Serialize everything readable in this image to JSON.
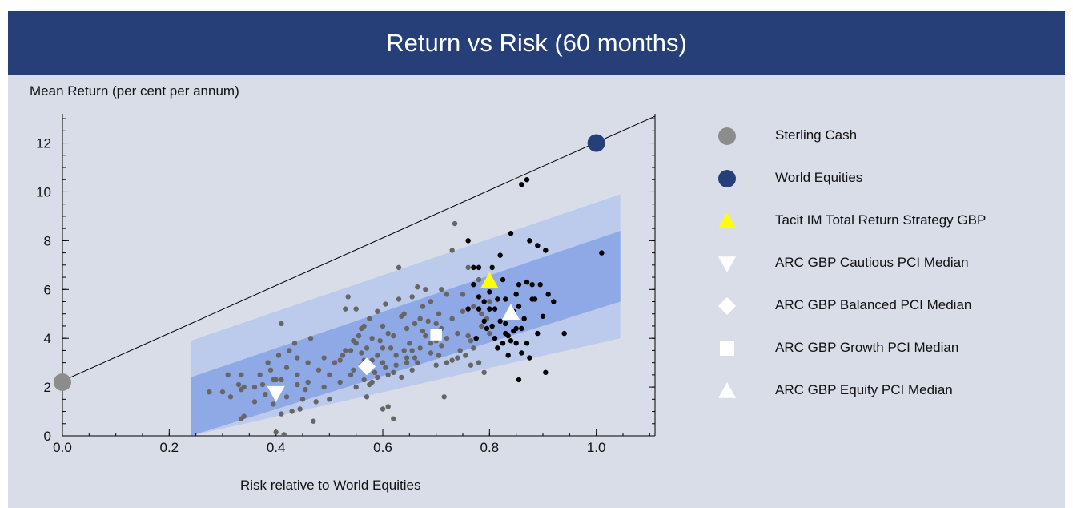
{
  "title": "Return vs Risk (60 months)",
  "chart_data": {
    "type": "scatter",
    "title": "Return vs Risk (60 months)",
    "xlabel": "Risk relative to World Equities",
    "ylabel": "Mean Return (per cent per annum)",
    "xlim": [
      0,
      1.11
    ],
    "ylim": [
      0,
      13.2
    ],
    "xticks": [
      "0.0",
      "0.2",
      "0.4",
      "0.6",
      "0.8",
      "1.0"
    ],
    "yticks": [
      "0",
      "2",
      "4",
      "6",
      "8",
      "10",
      "12"
    ],
    "line": {
      "x": [
        0,
        1.11
      ],
      "y": [
        2.25,
        13.1
      ]
    },
    "bands": {
      "outer": {
        "x": [
          0.24,
          1.045
        ],
        "upper": [
          3.9,
          9.9
        ],
        "lower": [
          0,
          4.0
        ]
      },
      "inner": {
        "x": [
          0.24,
          1.045
        ],
        "upper": [
          2.4,
          8.4
        ],
        "lower": [
          0,
          5.5
        ]
      }
    },
    "legend": [
      {
        "label": "Sterling Cash",
        "marker": "circle",
        "color": "#8c8c8c"
      },
      {
        "label": "World Equities",
        "marker": "circle",
        "color": "#273f79"
      },
      {
        "label": "Tacit IM Total Return Strategy GBP",
        "marker": "triangle-up",
        "color": "#ffff00"
      },
      {
        "label": "ARC GBP Cautious PCI Median",
        "marker": "triangle-down",
        "color": "#ffffff"
      },
      {
        "label": "ARC GBP Balanced PCI Median",
        "marker": "diamond",
        "color": "#ffffff"
      },
      {
        "label": "ARC GBP Growth PCI Median",
        "marker": "square",
        "color": "#ffffff"
      },
      {
        "label": "ARC GBP Equity PCI Median",
        "marker": "triangle-up",
        "color": "#ffffff"
      }
    ],
    "highlights": [
      {
        "name": "Sterling Cash",
        "x": 0.0,
        "y": 2.2
      },
      {
        "name": "World Equities",
        "x": 1.0,
        "y": 12.0
      },
      {
        "name": "Tacit IM Total Return Strategy GBP",
        "x": 0.8,
        "y": 6.35
      },
      {
        "name": "ARC GBP Cautious PCI Median",
        "x": 0.4,
        "y": 1.75
      },
      {
        "name": "ARC GBP Balanced PCI Median",
        "x": 0.57,
        "y": 2.85
      },
      {
        "name": "ARC GBP Growth PCI Median",
        "x": 0.7,
        "y": 4.15
      },
      {
        "name": "ARC GBP Equity PCI Median",
        "x": 0.84,
        "y": 5.05
      }
    ],
    "peers_grey": [
      [
        0.275,
        1.8
      ],
      [
        0.3,
        1.8
      ],
      [
        0.31,
        2.5
      ],
      [
        0.315,
        1.6
      ],
      [
        0.33,
        2.1
      ],
      [
        0.335,
        1.9
      ],
      [
        0.335,
        2.5
      ],
      [
        0.34,
        2.0
      ],
      [
        0.335,
        0.7
      ],
      [
        0.34,
        0.8
      ],
      [
        0.36,
        1.4
      ],
      [
        0.37,
        2.5
      ],
      [
        0.375,
        2.1
      ],
      [
        0.385,
        3.0
      ],
      [
        0.39,
        2.7
      ],
      [
        0.395,
        2.3
      ],
      [
        0.395,
        1.3
      ],
      [
        0.4,
        0.15
      ],
      [
        0.4,
        2.3
      ],
      [
        0.405,
        3.3
      ],
      [
        0.41,
        2.3
      ],
      [
        0.41,
        0.9
      ],
      [
        0.41,
        4.6
      ],
      [
        0.42,
        2.8
      ],
      [
        0.42,
        1.6
      ],
      [
        0.415,
        0.05
      ],
      [
        0.425,
        3.5
      ],
      [
        0.43,
        1.0
      ],
      [
        0.435,
        3.8
      ],
      [
        0.44,
        3.2
      ],
      [
        0.44,
        2.1
      ],
      [
        0.445,
        1.1
      ],
      [
        0.45,
        1.5
      ],
      [
        0.455,
        1.9
      ],
      [
        0.46,
        2.2
      ],
      [
        0.465,
        4.0
      ],
      [
        0.47,
        0.6
      ],
      [
        0.475,
        1.4
      ],
      [
        0.48,
        2.7
      ],
      [
        0.49,
        3.2
      ],
      [
        0.5,
        2.5
      ],
      [
        0.5,
        1.5
      ],
      [
        0.51,
        3.0
      ],
      [
        0.52,
        2.2
      ],
      [
        0.525,
        3.3
      ],
      [
        0.53,
        5.2
      ],
      [
        0.535,
        5.7
      ],
      [
        0.54,
        3.5
      ],
      [
        0.545,
        2.7
      ],
      [
        0.55,
        3.8
      ],
      [
        0.55,
        5.2
      ],
      [
        0.555,
        4.1
      ],
      [
        0.56,
        3.4
      ],
      [
        0.56,
        2.9
      ],
      [
        0.565,
        4.5
      ],
      [
        0.565,
        2.3
      ],
      [
        0.57,
        3.6
      ],
      [
        0.575,
        2.1
      ],
      [
        0.58,
        3.1
      ],
      [
        0.58,
        4.0
      ],
      [
        0.585,
        2.6
      ],
      [
        0.59,
        3.3
      ],
      [
        0.59,
        2.4
      ],
      [
        0.595,
        3.9
      ],
      [
        0.6,
        4.5
      ],
      [
        0.6,
        3.0
      ],
      [
        0.605,
        5.4
      ],
      [
        0.605,
        2.8
      ],
      [
        0.61,
        4.2
      ],
      [
        0.61,
        1.2
      ],
      [
        0.615,
        3.6
      ],
      [
        0.62,
        2.6
      ],
      [
        0.62,
        4.1
      ],
      [
        0.625,
        3.3
      ],
      [
        0.63,
        5.6
      ],
      [
        0.63,
        6.9
      ],
      [
        0.635,
        4.9
      ],
      [
        0.64,
        3.5
      ],
      [
        0.64,
        5.0
      ],
      [
        0.645,
        3.0
      ],
      [
        0.645,
        4.4
      ],
      [
        0.65,
        3.8
      ],
      [
        0.655,
        5.7
      ],
      [
        0.66,
        3.2
      ],
      [
        0.66,
        4.6
      ],
      [
        0.665,
        6.1
      ],
      [
        0.67,
        4.8
      ],
      [
        0.67,
        3.6
      ],
      [
        0.675,
        5.3
      ],
      [
        0.68,
        4.1
      ],
      [
        0.68,
        6.0
      ],
      [
        0.685,
        4.7
      ],
      [
        0.69,
        5.5
      ],
      [
        0.69,
        3.4
      ],
      [
        0.695,
        4.2
      ],
      [
        0.7,
        3.9
      ],
      [
        0.7,
        4.6
      ],
      [
        0.705,
        5.0
      ],
      [
        0.71,
        4.4
      ],
      [
        0.715,
        1.6
      ],
      [
        0.72,
        3.0
      ],
      [
        0.72,
        4.0
      ],
      [
        0.73,
        3.1
      ],
      [
        0.73,
        7.6
      ],
      [
        0.735,
        8.7
      ],
      [
        0.74,
        4.2
      ],
      [
        0.745,
        3.5
      ],
      [
        0.75,
        5.8
      ],
      [
        0.755,
        3.3
      ],
      [
        0.76,
        4.1
      ],
      [
        0.765,
        2.9
      ],
      [
        0.77,
        3.6
      ],
      [
        0.775,
        4.0
      ],
      [
        0.78,
        3.0
      ],
      [
        0.785,
        4.5
      ],
      [
        0.79,
        2.6
      ],
      [
        0.795,
        4.8
      ],
      [
        0.8,
        5.5
      ],
      [
        0.76,
        6.9
      ],
      [
        0.78,
        6.4
      ],
      [
        0.62,
        0.7
      ],
      [
        0.6,
        1.1
      ],
      [
        0.57,
        1.6
      ],
      [
        0.55,
        2.0
      ],
      [
        0.58,
        2.2
      ],
      [
        0.61,
        2.5
      ],
      [
        0.655,
        2.7
      ],
      [
        0.705,
        3.3
      ],
      [
        0.74,
        3.2
      ],
      [
        0.765,
        3.9
      ],
      [
        0.53,
        3.5
      ],
      [
        0.545,
        3.9
      ],
      [
        0.56,
        4.4
      ],
      [
        0.575,
        4.8
      ],
      [
        0.59,
        5.1
      ],
      [
        0.54,
        2.5
      ],
      [
        0.52,
        3.1
      ],
      [
        0.675,
        4.3
      ],
      [
        0.645,
        3.2
      ],
      [
        0.625,
        2.9
      ],
      [
        0.635,
        2.4
      ],
      [
        0.665,
        3.0
      ],
      [
        0.7,
        2.9
      ],
      [
        0.72,
        5.8
      ],
      [
        0.71,
        6.0
      ],
      [
        0.73,
        4.8
      ],
      [
        0.75,
        5.1
      ],
      [
        0.77,
        5.3
      ],
      [
        0.785,
        5.0
      ],
      [
        0.8,
        4.2
      ],
      [
        0.46,
        3.0
      ],
      [
        0.49,
        2.0
      ],
      [
        0.38,
        1.7
      ],
      [
        0.36,
        2.0
      ],
      [
        0.44,
        2.5
      ],
      [
        0.565,
        3.1
      ],
      [
        0.6,
        3.6
      ],
      [
        0.655,
        3.5
      ],
      [
        0.69,
        3.8
      ],
      [
        0.71,
        3.7
      ]
    ],
    "peers_black": [
      [
        0.76,
        8.0
      ],
      [
        0.77,
        6.9
      ],
      [
        0.78,
        6.9
      ],
      [
        0.77,
        6.2
      ],
      [
        0.78,
        5.7
      ],
      [
        0.78,
        5.2
      ],
      [
        0.79,
        5.5
      ],
      [
        0.79,
        4.7
      ],
      [
        0.76,
        5.2
      ],
      [
        0.775,
        4.0
      ],
      [
        0.8,
        5.9
      ],
      [
        0.8,
        5.2
      ],
      [
        0.805,
        4.5
      ],
      [
        0.81,
        5.2
      ],
      [
        0.81,
        4.0
      ],
      [
        0.815,
        3.6
      ],
      [
        0.82,
        4.7
      ],
      [
        0.825,
        6.4
      ],
      [
        0.83,
        5.6
      ],
      [
        0.83,
        4.6
      ],
      [
        0.835,
        4.1
      ],
      [
        0.84,
        3.9
      ],
      [
        0.84,
        8.3
      ],
      [
        0.845,
        4.3
      ],
      [
        0.85,
        4.4
      ],
      [
        0.85,
        3.8
      ],
      [
        0.855,
        5.3
      ],
      [
        0.855,
        6.2
      ],
      [
        0.86,
        4.4
      ],
      [
        0.86,
        3.4
      ],
      [
        0.855,
        2.3
      ],
      [
        0.86,
        10.3
      ],
      [
        0.87,
        10.5
      ],
      [
        0.87,
        6.3
      ],
      [
        0.875,
        8.0
      ],
      [
        0.88,
        5.6
      ],
      [
        0.88,
        6.2
      ],
      [
        0.885,
        5.6
      ],
      [
        0.89,
        7.8
      ],
      [
        0.89,
        4.2
      ],
      [
        0.895,
        6.2
      ],
      [
        0.9,
        4.9
      ],
      [
        0.905,
        7.6
      ],
      [
        0.91,
        5.8
      ],
      [
        0.92,
        5.5
      ],
      [
        0.94,
        4.2
      ],
      [
        0.905,
        2.6
      ],
      [
        1.01,
        7.5
      ],
      [
        0.82,
        7.4
      ],
      [
        0.83,
        4.2
      ],
      [
        0.835,
        3.3
      ],
      [
        0.85,
        5.8
      ],
      [
        0.845,
        5.1
      ],
      [
        0.865,
        4.8
      ],
      [
        0.87,
        3.8
      ],
      [
        0.875,
        3.2
      ],
      [
        0.815,
        5.6
      ],
      [
        0.805,
        6.9
      ],
      [
        0.795,
        4.4
      ],
      [
        0.825,
        3.8
      ]
    ]
  }
}
